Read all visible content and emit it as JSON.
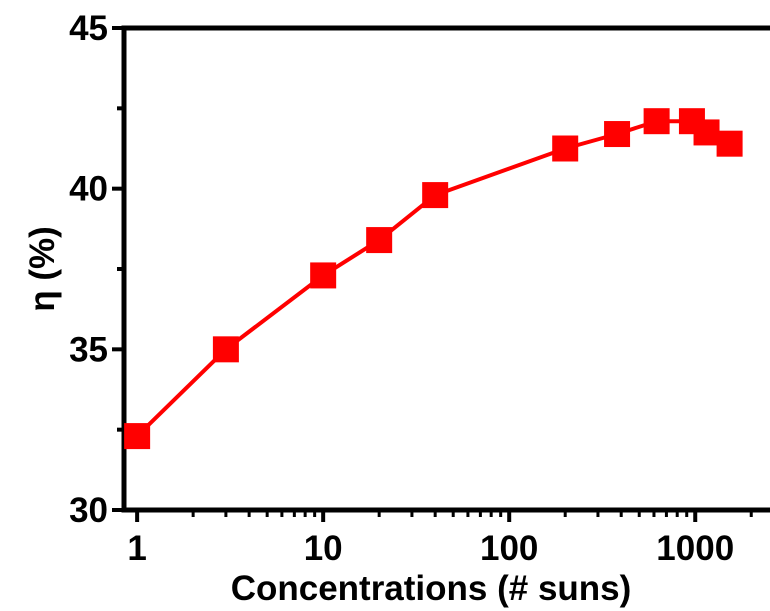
{
  "chart_data": {
    "type": "line",
    "title": "",
    "xlabel": "Concentrations (# suns)",
    "ylabel": "η (%)",
    "xscale": "log",
    "xlim": [
      0.85,
      3000
    ],
    "ylim": [
      30,
      45
    ],
    "x_ticks": [
      1,
      10,
      100,
      1000
    ],
    "x_tick_labels": [
      "1",
      "10",
      "100",
      "1000"
    ],
    "y_ticks": [
      30,
      35,
      40,
      45
    ],
    "y_tick_labels": [
      "30",
      "35",
      "40",
      "45"
    ],
    "grid": false,
    "legend": "none",
    "marker": "square",
    "color": "#ff0000",
    "series": [
      {
        "x": [
          1,
          3,
          10,
          20,
          40,
          200,
          380,
          620,
          960,
          1150,
          1530
        ],
        "y": [
          32.3,
          35.0,
          37.3,
          38.4,
          39.8,
          41.25,
          41.7,
          42.1,
          42.1,
          41.75,
          41.4
        ]
      }
    ]
  }
}
